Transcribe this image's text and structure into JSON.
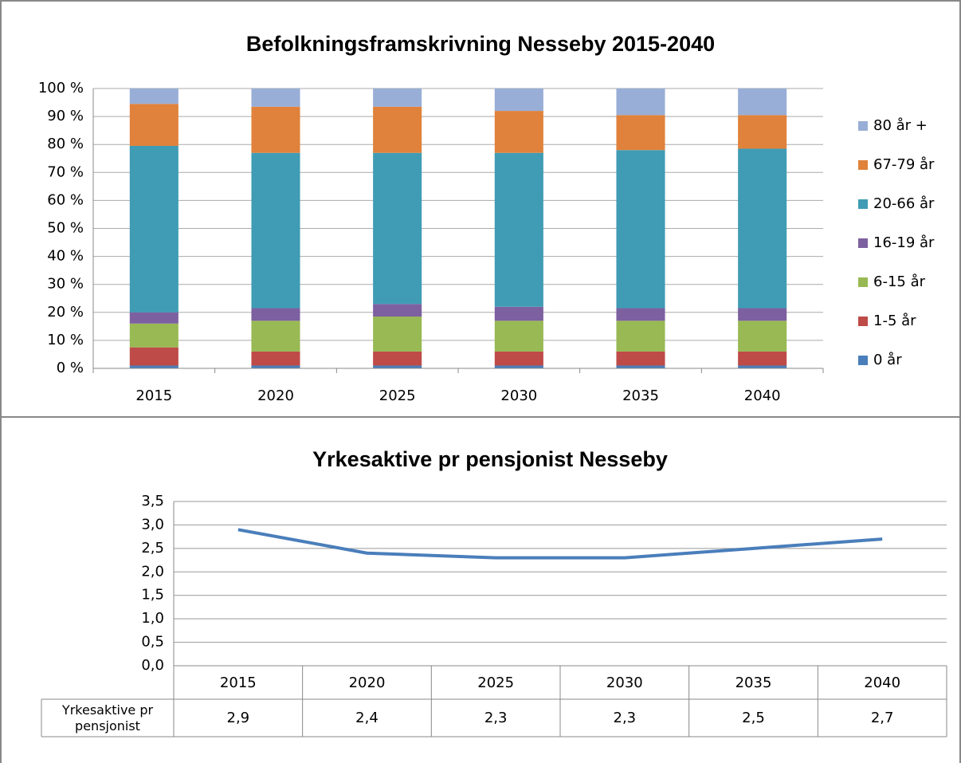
{
  "chart_data": [
    {
      "type": "bar",
      "stacked": true,
      "title": "Befolkningsframskrivning Nesseby 2015-2040",
      "categories": [
        "2015",
        "2020",
        "2025",
        "2030",
        "2035",
        "2040"
      ],
      "series": [
        {
          "name": "0 år",
          "color": "#4a7ebb",
          "values": [
            1,
            1,
            1,
            1,
            1,
            1
          ]
        },
        {
          "name": "1-5 år",
          "color": "#be4b48",
          "values": [
            6.5,
            5,
            5,
            5,
            5,
            5
          ]
        },
        {
          "name": "6-15 år",
          "color": "#98b954",
          "values": [
            8.5,
            11,
            12.5,
            11,
            11,
            11
          ]
        },
        {
          "name": "16-19 år",
          "color": "#7d60a0",
          "values": [
            4,
            4.5,
            4.5,
            5,
            4.5,
            4.5
          ]
        },
        {
          "name": "20-66 år",
          "color": "#3f9cb4",
          "values": [
            59.5,
            55.5,
            54,
            55,
            56.5,
            57
          ]
        },
        {
          "name": "67-79 år",
          "color": "#e0823b",
          "values": [
            15,
            16.5,
            16.5,
            15,
            12.5,
            12
          ]
        },
        {
          "name": "80 år +",
          "color": "#98aed7",
          "values": [
            5.5,
            6.5,
            6.5,
            8,
            9.5,
            9.5
          ]
        }
      ],
      "ylim": [
        0,
        100
      ],
      "yticks": [
        {
          "value": 0,
          "label": "0 %"
        },
        {
          "value": 10,
          "label": "10 %"
        },
        {
          "value": 20,
          "label": "20 %"
        },
        {
          "value": 30,
          "label": "30 %"
        },
        {
          "value": 40,
          "label": "40 %"
        },
        {
          "value": 50,
          "label": "50 %"
        },
        {
          "value": 60,
          "label": "60 %"
        },
        {
          "value": 70,
          "label": "70 %"
        },
        {
          "value": 80,
          "label": "80 %"
        },
        {
          "value": 90,
          "label": "90 %"
        },
        {
          "value": 100,
          "label": "100 %"
        }
      ],
      "grid": true,
      "legend": "right"
    },
    {
      "type": "line",
      "title": "Yrkesaktive pr pensjonist Nesseby",
      "categories": [
        "2015",
        "2020",
        "2025",
        "2030",
        "2035",
        "2040"
      ],
      "series": [
        {
          "name": "Yrkesaktive pr pensjonist",
          "color": "#4a7ebb",
          "values": [
            2.9,
            2.4,
            2.3,
            2.3,
            2.5,
            2.7
          ],
          "value_labels": [
            "2,9",
            "2,4",
            "2,3",
            "2,3",
            "2,5",
            "2,7"
          ]
        }
      ],
      "ylim": [
        0,
        3.5
      ],
      "yticks": [
        {
          "value": 0,
          "label": "0,0"
        },
        {
          "value": 0.5,
          "label": "0,5"
        },
        {
          "value": 1,
          "label": "1,0"
        },
        {
          "value": 1.5,
          "label": "1,5"
        },
        {
          "value": 2,
          "label": "2,0"
        },
        {
          "value": 2.5,
          "label": "2,5"
        },
        {
          "value": 3,
          "label": "3,0"
        },
        {
          "value": 3.5,
          "label": "3,5"
        }
      ],
      "grid": true,
      "data_table": true
    }
  ]
}
